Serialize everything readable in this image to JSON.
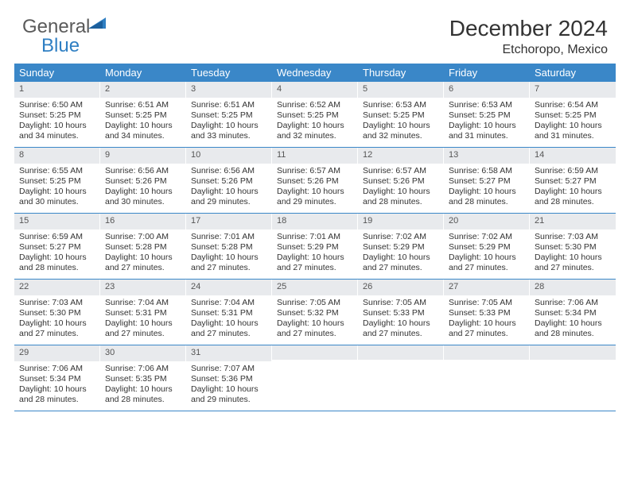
{
  "logo": {
    "text1": "General",
    "text2": "Blue"
  },
  "title": "December 2024",
  "location": "Etchoropo, Mexico",
  "weekdays": [
    "Sunday",
    "Monday",
    "Tuesday",
    "Wednesday",
    "Thursday",
    "Friday",
    "Saturday"
  ],
  "colors": {
    "headerBar": "#3a87c8",
    "dayNumBg": "#e8eaed",
    "divider": "#3a87c8",
    "text": "#333333",
    "logoGray": "#5a5a5a",
    "logoBlue": "#2f7fc3"
  },
  "typography": {
    "title_fontsize": 28,
    "location_fontsize": 16,
    "weekday_fontsize": 13,
    "daynum_fontsize": 11,
    "body_fontsize": 10.5
  },
  "weeks": [
    [
      {
        "n": "1",
        "sr": "Sunrise: 6:50 AM",
        "ss": "Sunset: 5:25 PM",
        "d1": "Daylight: 10 hours",
        "d2": "and 34 minutes."
      },
      {
        "n": "2",
        "sr": "Sunrise: 6:51 AM",
        "ss": "Sunset: 5:25 PM",
        "d1": "Daylight: 10 hours",
        "d2": "and 34 minutes."
      },
      {
        "n": "3",
        "sr": "Sunrise: 6:51 AM",
        "ss": "Sunset: 5:25 PM",
        "d1": "Daylight: 10 hours",
        "d2": "and 33 minutes."
      },
      {
        "n": "4",
        "sr": "Sunrise: 6:52 AM",
        "ss": "Sunset: 5:25 PM",
        "d1": "Daylight: 10 hours",
        "d2": "and 32 minutes."
      },
      {
        "n": "5",
        "sr": "Sunrise: 6:53 AM",
        "ss": "Sunset: 5:25 PM",
        "d1": "Daylight: 10 hours",
        "d2": "and 32 minutes."
      },
      {
        "n": "6",
        "sr": "Sunrise: 6:53 AM",
        "ss": "Sunset: 5:25 PM",
        "d1": "Daylight: 10 hours",
        "d2": "and 31 minutes."
      },
      {
        "n": "7",
        "sr": "Sunrise: 6:54 AM",
        "ss": "Sunset: 5:25 PM",
        "d1": "Daylight: 10 hours",
        "d2": "and 31 minutes."
      }
    ],
    [
      {
        "n": "8",
        "sr": "Sunrise: 6:55 AM",
        "ss": "Sunset: 5:25 PM",
        "d1": "Daylight: 10 hours",
        "d2": "and 30 minutes."
      },
      {
        "n": "9",
        "sr": "Sunrise: 6:56 AM",
        "ss": "Sunset: 5:26 PM",
        "d1": "Daylight: 10 hours",
        "d2": "and 30 minutes."
      },
      {
        "n": "10",
        "sr": "Sunrise: 6:56 AM",
        "ss": "Sunset: 5:26 PM",
        "d1": "Daylight: 10 hours",
        "d2": "and 29 minutes."
      },
      {
        "n": "11",
        "sr": "Sunrise: 6:57 AM",
        "ss": "Sunset: 5:26 PM",
        "d1": "Daylight: 10 hours",
        "d2": "and 29 minutes."
      },
      {
        "n": "12",
        "sr": "Sunrise: 6:57 AM",
        "ss": "Sunset: 5:26 PM",
        "d1": "Daylight: 10 hours",
        "d2": "and 28 minutes."
      },
      {
        "n": "13",
        "sr": "Sunrise: 6:58 AM",
        "ss": "Sunset: 5:27 PM",
        "d1": "Daylight: 10 hours",
        "d2": "and 28 minutes."
      },
      {
        "n": "14",
        "sr": "Sunrise: 6:59 AM",
        "ss": "Sunset: 5:27 PM",
        "d1": "Daylight: 10 hours",
        "d2": "and 28 minutes."
      }
    ],
    [
      {
        "n": "15",
        "sr": "Sunrise: 6:59 AM",
        "ss": "Sunset: 5:27 PM",
        "d1": "Daylight: 10 hours",
        "d2": "and 28 minutes."
      },
      {
        "n": "16",
        "sr": "Sunrise: 7:00 AM",
        "ss": "Sunset: 5:28 PM",
        "d1": "Daylight: 10 hours",
        "d2": "and 27 minutes."
      },
      {
        "n": "17",
        "sr": "Sunrise: 7:01 AM",
        "ss": "Sunset: 5:28 PM",
        "d1": "Daylight: 10 hours",
        "d2": "and 27 minutes."
      },
      {
        "n": "18",
        "sr": "Sunrise: 7:01 AM",
        "ss": "Sunset: 5:29 PM",
        "d1": "Daylight: 10 hours",
        "d2": "and 27 minutes."
      },
      {
        "n": "19",
        "sr": "Sunrise: 7:02 AM",
        "ss": "Sunset: 5:29 PM",
        "d1": "Daylight: 10 hours",
        "d2": "and 27 minutes."
      },
      {
        "n": "20",
        "sr": "Sunrise: 7:02 AM",
        "ss": "Sunset: 5:29 PM",
        "d1": "Daylight: 10 hours",
        "d2": "and 27 minutes."
      },
      {
        "n": "21",
        "sr": "Sunrise: 7:03 AM",
        "ss": "Sunset: 5:30 PM",
        "d1": "Daylight: 10 hours",
        "d2": "and 27 minutes."
      }
    ],
    [
      {
        "n": "22",
        "sr": "Sunrise: 7:03 AM",
        "ss": "Sunset: 5:30 PM",
        "d1": "Daylight: 10 hours",
        "d2": "and 27 minutes."
      },
      {
        "n": "23",
        "sr": "Sunrise: 7:04 AM",
        "ss": "Sunset: 5:31 PM",
        "d1": "Daylight: 10 hours",
        "d2": "and 27 minutes."
      },
      {
        "n": "24",
        "sr": "Sunrise: 7:04 AM",
        "ss": "Sunset: 5:31 PM",
        "d1": "Daylight: 10 hours",
        "d2": "and 27 minutes."
      },
      {
        "n": "25",
        "sr": "Sunrise: 7:05 AM",
        "ss": "Sunset: 5:32 PM",
        "d1": "Daylight: 10 hours",
        "d2": "and 27 minutes."
      },
      {
        "n": "26",
        "sr": "Sunrise: 7:05 AM",
        "ss": "Sunset: 5:33 PM",
        "d1": "Daylight: 10 hours",
        "d2": "and 27 minutes."
      },
      {
        "n": "27",
        "sr": "Sunrise: 7:05 AM",
        "ss": "Sunset: 5:33 PM",
        "d1": "Daylight: 10 hours",
        "d2": "and 27 minutes."
      },
      {
        "n": "28",
        "sr": "Sunrise: 7:06 AM",
        "ss": "Sunset: 5:34 PM",
        "d1": "Daylight: 10 hours",
        "d2": "and 28 minutes."
      }
    ],
    [
      {
        "n": "29",
        "sr": "Sunrise: 7:06 AM",
        "ss": "Sunset: 5:34 PM",
        "d1": "Daylight: 10 hours",
        "d2": "and 28 minutes."
      },
      {
        "n": "30",
        "sr": "Sunrise: 7:06 AM",
        "ss": "Sunset: 5:35 PM",
        "d1": "Daylight: 10 hours",
        "d2": "and 28 minutes."
      },
      {
        "n": "31",
        "sr": "Sunrise: 7:07 AM",
        "ss": "Sunset: 5:36 PM",
        "d1": "Daylight: 10 hours",
        "d2": "and 29 minutes."
      },
      {
        "empty": true
      },
      {
        "empty": true
      },
      {
        "empty": true
      },
      {
        "empty": true
      }
    ]
  ]
}
